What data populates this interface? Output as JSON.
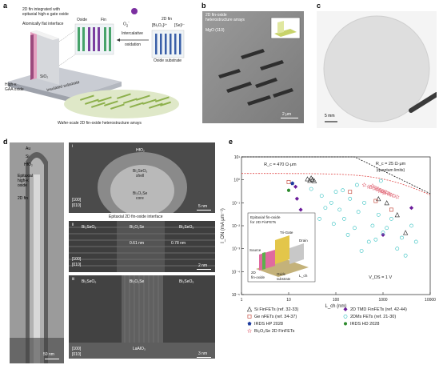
{
  "panel_a": {
    "letter": "a",
    "label_2d_fin": "2D fin integrated with",
    "label_2d_fin2": "epitaxial high-κ gate oxide",
    "label_flat": "Atomically flat interface",
    "label_oxide": "Oxide",
    "label_fin": "Fin",
    "label_o2": "O",
    "label_o2_sub": "2",
    "label_o2_sup": "-",
    "label_intercal": "Intercalative",
    "label_intercal2": "oxidation",
    "label_2dfin_r": "2D fin",
    "label_bi2o2_formula": "[Bi₂O₂]²⁺",
    "label_se_formula": "[Se]²⁻",
    "label_oxide_sub": "Oxide substrate",
    "label_highk": "High-κ",
    "label_gaa": "GAA oxide",
    "label_insul": "Insulated substrate",
    "label_sio2": "SiO₂",
    "label_wafer": "Wafer-scale 2D fin-oxide heterostructure arrays"
  },
  "panel_b": {
    "letter": "b",
    "title1": "2D fin-oxide",
    "title2": "heterostructure arrays",
    "substrate": "MgO (110)",
    "scale": "2 μm"
  },
  "panel_c": {
    "letter": "c",
    "scale": "5 mm"
  },
  "panel_d": {
    "letter": "d",
    "au": "Au",
    "si": "Si",
    "hfo2": "HfO₂",
    "epi1": "Epitaxial",
    "epi2": "high-κ",
    "epi3": "oxide",
    "fin": "2D fin",
    "scale_main": "50 nm",
    "i": "i",
    "i_hfo2": "HfO₂",
    "i_shell1": "Bi₂SeO₅",
    "i_shell2": "shell",
    "i_core1": "Bi₂O₂Se",
    "i_core2": "core",
    "i_scale": "5 nm",
    "i_axis1": "[100]",
    "i_axis2": "[010]",
    "ii_title": "Epitaxial 2D fin-oxide interface",
    "ii": "ii",
    "ii_l": "Bi₂SeO₅",
    "ii_m": "Bi₂O₂Se",
    "ii_r": "Bi₂SeO₅",
    "ii_d1": "0.61 nm",
    "ii_d2": "0.78 nm",
    "ii_scale": "2 nm",
    "ii_axis1": "[100]",
    "ii_axis2": "[010]",
    "iii": "iii",
    "iii_l": "Bi₂SeO₅",
    "iii_m": "Bi₂O₂Se",
    "iii_r": "Bi₂SeO₅",
    "iii_sub": "LaAlO₃",
    "iii_scale": "3 nm",
    "iii_axis1": "[100]",
    "iii_axis2": "[010]"
  },
  "chart_data": {
    "type": "scatter",
    "letter": "e",
    "xlabel": "L_ch (nm)",
    "ylabel": "I_ON (mA μm⁻¹)",
    "xscale": "log",
    "yscale": "log",
    "xlim": [
      1,
      10000
    ],
    "ylim": [
      1e-05,
      10
    ],
    "x_ticks": [
      "1",
      "10",
      "100",
      "1000",
      "10000"
    ],
    "y_ticks": [
      "10¹",
      "10⁰",
      "10⁻¹",
      "10⁻²",
      "10⁻³",
      "10⁻⁴",
      "10⁻⁵"
    ],
    "annotation_rc1": "R_c = 470 Ω·μm",
    "annotation_rc2": "R_c = 25 Ω·μm",
    "annotation_rc2b": "(quantum limits)",
    "annotation_vds": "V_DS = 1 V",
    "inset_title1": "Epitaxial fin-oxide",
    "inset_title2": "for 2D FinFETs",
    "inset_topgate": "Tri-Gate",
    "inset_drain": "Drain",
    "inset_source": "Source",
    "inset_2dfin1": "2D",
    "inset_2dfin2": "fin-oxide",
    "inset_oxide": "Oxide",
    "inset_substrate": "substrate",
    "inset_lch": "L_ch",
    "series": [
      {
        "name": "Si FinFETs (ref. 32-33)",
        "marker": "triangle",
        "color": "#222222",
        "x": [
          25,
          28,
          30,
          32,
          35,
          800,
          1200,
          2000,
          3000
        ],
        "y": [
          1.1,
          0.95,
          1.2,
          1.05,
          0.9,
          0.15,
          0.1,
          0.03,
          0.005
        ]
      },
      {
        "name": "Ge nFETs (ref. 34-37)",
        "marker": "square",
        "color": "#c0392b",
        "x": [
          10,
          200,
          700,
          1500
        ],
        "y": [
          0.8,
          0.3,
          0.12,
          0.05
        ]
      },
      {
        "name": "IRDS HP 2028",
        "marker": "pentagon",
        "color": "#1f3c9e",
        "x": [
          12
        ],
        "y": [
          0.7
        ]
      },
      {
        "name": "2D TMD FinFETs (ref. 42-44)",
        "marker": "diamond",
        "color": "#6a1b9a",
        "x": [
          15,
          18,
          14,
          1000,
          4000
        ],
        "y": [
          0.15,
          0.05,
          0.5,
          0.004,
          0.06
        ]
      },
      {
        "name": "2DMs FETs (ref. 21-30)",
        "marker": "circle",
        "color": "#30c0c0",
        "x": [
          30,
          50,
          80,
          100,
          120,
          150,
          200,
          250,
          300,
          400,
          500,
          600,
          800,
          1000,
          1500,
          2000,
          3000,
          4000,
          5000,
          60,
          90,
          180,
          350,
          700,
          1200,
          2500,
          45,
          140,
          280,
          900
        ],
        "y": [
          0.4,
          0.2,
          0.1,
          0.3,
          0.05,
          0.02,
          0.15,
          0.008,
          0.04,
          0.1,
          0.002,
          0.01,
          0.03,
          0.005,
          0.02,
          0.001,
          0.0005,
          0.01,
          0.002,
          0.06,
          0.012,
          0.004,
          0.0008,
          0.0025,
          0.008,
          0.003,
          0.02,
          0.35,
          0.6,
          0.9
        ]
      },
      {
        "name": "IRDS HD 2028",
        "marker": "circle",
        "color": "#2e8b2e",
        "x": [
          10
        ],
        "y": [
          0.35
        ]
      },
      {
        "name": "Bi₂O₂Se 2D FinFETs",
        "marker": "star",
        "color": "#e26b7a",
        "x": [
          400,
          500,
          600,
          700,
          800,
          900,
          1000,
          1100,
          1200,
          1300,
          1500,
          1700,
          2000,
          550,
          650,
          750,
          850,
          950,
          1050,
          1400
        ],
        "y": [
          0.6,
          0.5,
          0.55,
          0.45,
          0.4,
          0.35,
          0.32,
          0.3,
          0.28,
          0.25,
          0.22,
          0.2,
          0.18,
          0.48,
          0.42,
          0.38,
          0.33,
          0.31,
          0.27,
          0.24
        ]
      }
    ],
    "legend": [
      {
        "label": "Si FinFETs",
        "ref": "(ref. 32-33)",
        "marker": "triangle",
        "color": "#222222"
      },
      {
        "label": "2D TMD FinFETs",
        "ref": "(ref. 42-44)",
        "marker": "diamond",
        "color": "#6a1b9a"
      },
      {
        "label": "Ge nFETs",
        "ref": "(ref. 34-37)",
        "marker": "square",
        "color": "#c0392b"
      },
      {
        "label": "2DMs FETs",
        "ref": "(ref. 21-30)",
        "marker": "circle",
        "color": "#30c0c0"
      },
      {
        "label": "IRDS HP 2028",
        "ref": "",
        "marker": "pentagon",
        "color": "#1f3c9e"
      },
      {
        "label": "IRDS HD 2028",
        "ref": "",
        "marker": "circle-fill",
        "color": "#2e8b2e"
      },
      {
        "label": "Bi₂O₂Se 2D FinFETs",
        "ref": "",
        "marker": "star",
        "color": "#e26b7a"
      }
    ]
  }
}
